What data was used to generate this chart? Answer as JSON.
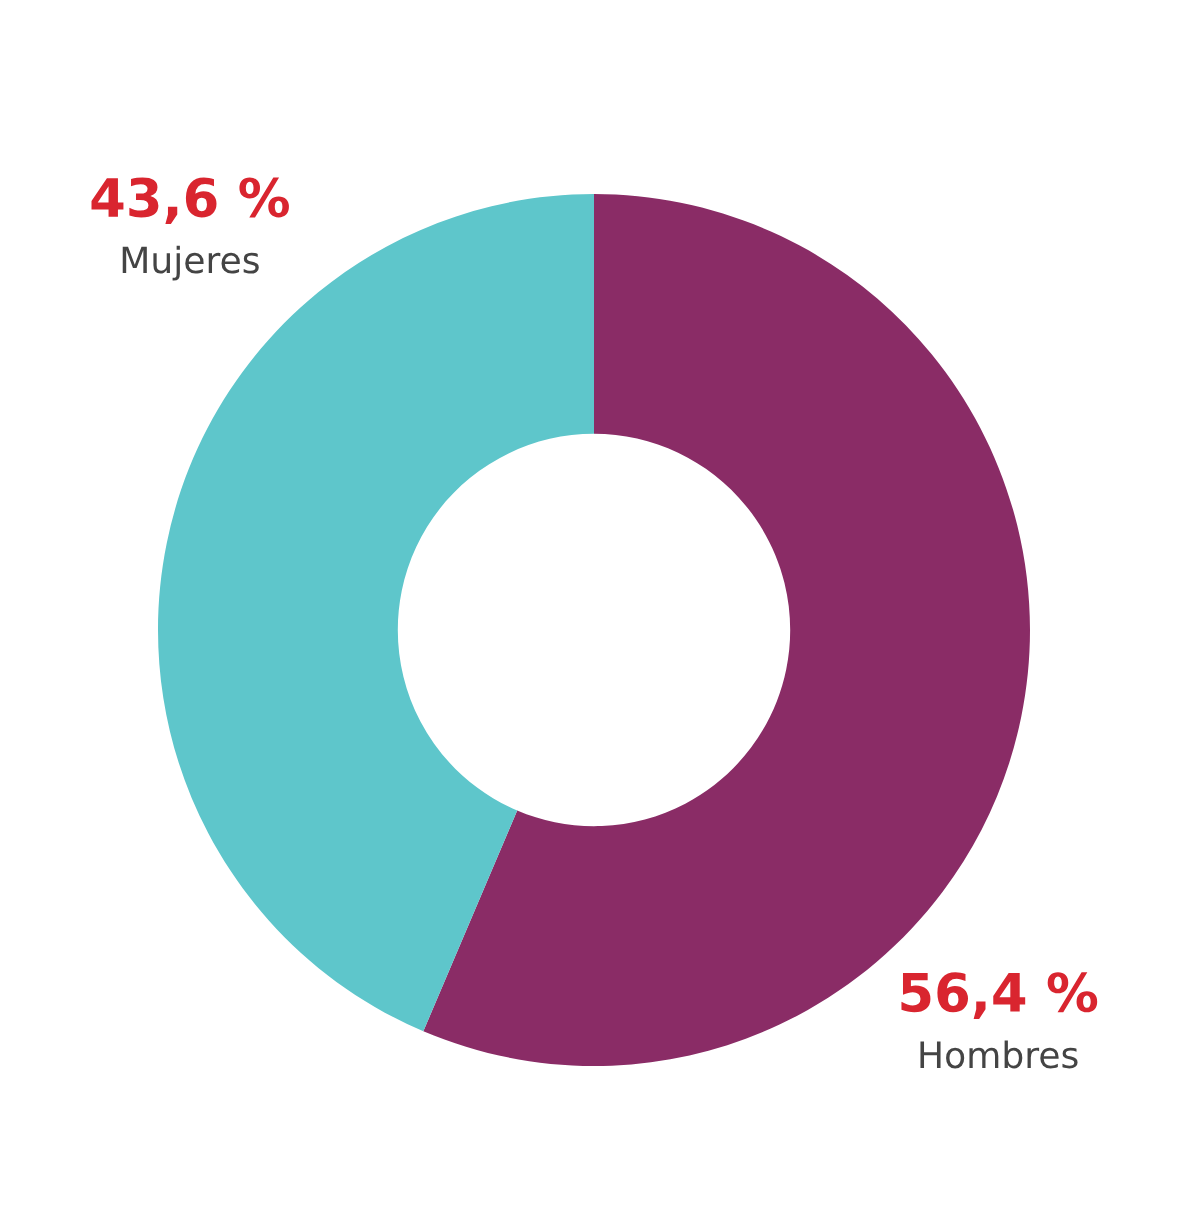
{
  "chart_data": {
    "type": "donut",
    "categories": [
      "Hombres",
      "Mujeres"
    ],
    "values": [
      56.4,
      43.6
    ],
    "colors": [
      "#8a2c66",
      "#5ec6cb"
    ],
    "value_labels": [
      "56,4 %",
      "43,6 %"
    ],
    "legend": false
  }
}
